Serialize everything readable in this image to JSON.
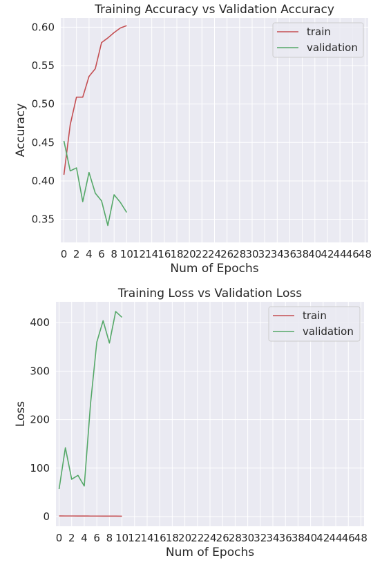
{
  "colors": {
    "panel_bg": "#EAEAF2",
    "grid": "#FFFFFF",
    "train": "#C44E52",
    "validation": "#55A868",
    "legend_edge": "#CCCCCC"
  },
  "chart_data": [
    {
      "type": "line",
      "title": "Training Accuracy vs Validation Accuracy",
      "xlabel": "Num of Epochs",
      "ylabel": "Accuracy",
      "xlim": [
        -0.5,
        48.5
      ],
      "ylim": [
        0.32,
        0.612
      ],
      "xticks": [
        0,
        2,
        4,
        6,
        8,
        10,
        12,
        14,
        16,
        18,
        20,
        22,
        24,
        26,
        28,
        30,
        32,
        34,
        36,
        38,
        40,
        42,
        44,
        46,
        48
      ],
      "yticks": [
        0.35,
        0.4,
        0.45,
        0.5,
        0.55,
        0.6
      ],
      "ytick_labels": [
        "0.35",
        "0.40",
        "0.45",
        "0.50",
        "0.55",
        "0.60"
      ],
      "grid": true,
      "legend_position": "upper right",
      "x": [
        0,
        1,
        2,
        3,
        4,
        5,
        6,
        7,
        8,
        9,
        10
      ],
      "series": [
        {
          "name": "train",
          "color": "#C44E52",
          "values": [
            0.408,
            0.473,
            0.509,
            0.509,
            0.536,
            0.546,
            0.58,
            0.586,
            0.593,
            0.599,
            0.602
          ]
        },
        {
          "name": "validation",
          "color": "#55A868",
          "values": [
            0.452,
            0.413,
            0.417,
            0.373,
            0.411,
            0.384,
            0.374,
            0.342,
            0.382,
            0.372,
            0.359
          ]
        }
      ]
    },
    {
      "type": "line",
      "title": "Training Loss vs Validation Loss",
      "xlabel": "Num of Epochs",
      "ylabel": "Loss",
      "xlim": [
        -0.5,
        48.5
      ],
      "ylim": [
        -20,
        443
      ],
      "xticks": [
        0,
        2,
        4,
        6,
        8,
        10,
        12,
        14,
        16,
        18,
        20,
        22,
        24,
        26,
        28,
        30,
        32,
        34,
        36,
        38,
        40,
        42,
        44,
        46,
        48
      ],
      "yticks": [
        0,
        100,
        200,
        300,
        400
      ],
      "ytick_labels": [
        "0",
        "100",
        "200",
        "300",
        "400"
      ],
      "grid": true,
      "legend_position": "upper right",
      "x": [
        0,
        1,
        2,
        3,
        4,
        5,
        6,
        7,
        8,
        9,
        10
      ],
      "series": [
        {
          "name": "train",
          "color": "#C44E52",
          "values": [
            1.3,
            1.2,
            1.2,
            1.1,
            1.1,
            1.0,
            1.0,
            0.9,
            0.9,
            0.9,
            0.8
          ]
        },
        {
          "name": "validation",
          "color": "#55A868",
          "values": [
            57,
            142,
            77,
            85,
            63,
            233,
            360,
            404,
            358,
            423,
            411
          ]
        }
      ]
    }
  ]
}
